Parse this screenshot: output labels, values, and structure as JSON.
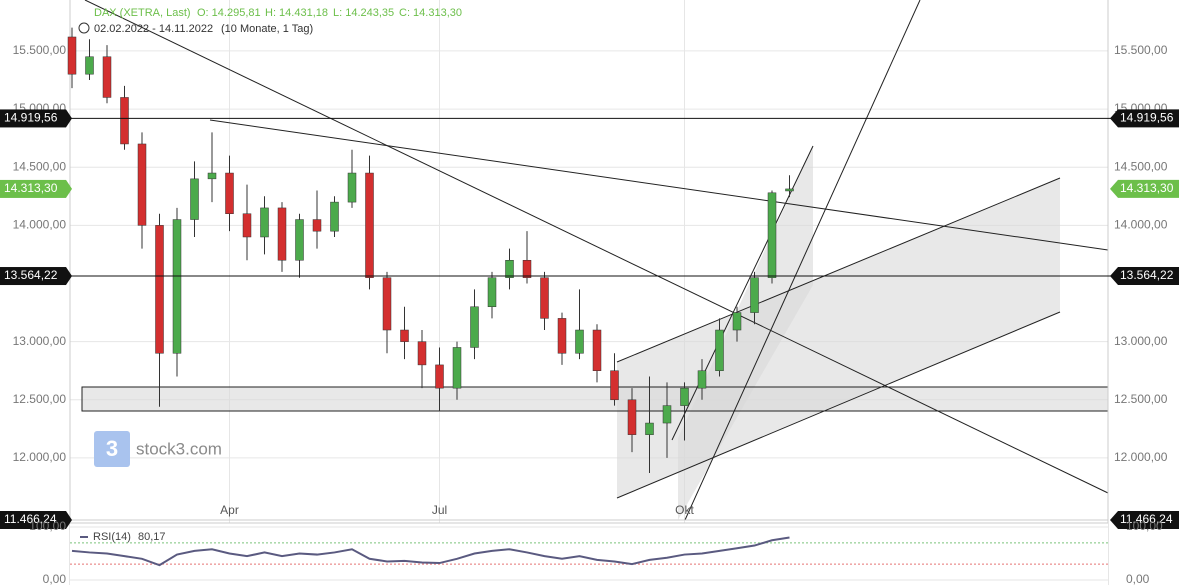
{
  "header": {
    "instrument": "DAX (XETRA, Last)",
    "ohlc": [
      "O: 14.295,81",
      "H: 14.431,18",
      "L: 14.243,35",
      "C: 14.313,30"
    ],
    "range": "02.02.2022 - 14.11.2022",
    "period": "(10 Monate, 1 Tag)"
  },
  "logo": "stock3.com",
  "chart_data": {
    "type": "candlestick",
    "categories": [
      null,
      null,
      null,
      null,
      null,
      null,
      null,
      null,
      null,
      "Apr",
      null,
      null,
      null,
      null,
      null,
      null,
      null,
      null,
      null,
      null,
      null,
      "Jul",
      null,
      null,
      null,
      null,
      null,
      null,
      null,
      null,
      null,
      null,
      null,
      null,
      null,
      "Okt",
      null,
      null,
      null,
      null,
      null,
      null
    ],
    "open": [
      15620,
      15300,
      15450,
      15100,
      14700,
      14000,
      12900,
      14050,
      14400,
      14450,
      14100,
      13900,
      14150,
      13700,
      14050,
      13950,
      14200,
      14450,
      13550,
      13100,
      13000,
      12800,
      12600,
      12950,
      13300,
      13550,
      13700,
      13550,
      13200,
      12900,
      13100,
      12750,
      12500,
      12200,
      12300,
      12450,
      12600,
      12750,
      13100,
      13250,
      13550,
      14295.81
    ],
    "high": [
      15700,
      15600,
      15550,
      15200,
      14800,
      14100,
      14150,
      14550,
      14800,
      14600,
      14350,
      14250,
      14200,
      14100,
      14300,
      14250,
      14650,
      14600,
      13600,
      13300,
      13100,
      12950,
      13000,
      13450,
      13600,
      13800,
      13950,
      13600,
      13250,
      13450,
      13150,
      12900,
      12600,
      12700,
      12650,
      12650,
      12850,
      13200,
      13300,
      13600,
      14300,
      14431.18
    ],
    "low": [
      15180,
      15250,
      15050,
      14650,
      13800,
      12440,
      12700,
      13900,
      14200,
      13950,
      13700,
      13750,
      13600,
      13550,
      13800,
      13900,
      14150,
      13450,
      12900,
      12850,
      12600,
      12400,
      12500,
      12850,
      13200,
      13450,
      13500,
      13100,
      12800,
      12850,
      12650,
      12450,
      12050,
      11870,
      12000,
      12150,
      12500,
      12700,
      13000,
      13150,
      13500,
      14243.35
    ],
    "close": [
      15300,
      15450,
      15100,
      14700,
      14000,
      12900,
      14050,
      14400,
      14450,
      14100,
      13900,
      14150,
      13700,
      14050,
      13950,
      14200,
      14450,
      13550,
      13100,
      13000,
      12800,
      12600,
      12950,
      13300,
      13550,
      13700,
      13550,
      13200,
      12900,
      13100,
      12750,
      12500,
      12200,
      12300,
      12450,
      12600,
      12750,
      13100,
      13250,
      13550,
      14280,
      14313.3
    ],
    "up_color": "#4caa4c",
    "down_color": "#d32f2f",
    "ylim": [
      11466.24,
      15938
    ],
    "yticks": [
      {
        "value": 15500,
        "label": "15.500,00"
      },
      {
        "value": 15000,
        "label": "15.000,00"
      },
      {
        "value": 14500,
        "label": "14.500,00"
      },
      {
        "value": 14000,
        "label": "14.000,00"
      },
      {
        "value": 13000,
        "label": "13.000,00"
      },
      {
        "value": 12500,
        "label": "12.500,00"
      },
      {
        "value": 12000,
        "label": "12.000,00"
      },
      {
        "value": 11466.24,
        "label": "11.466,24"
      }
    ],
    "levels": [
      {
        "value": 14919.56,
        "label": "14.919,56"
      },
      {
        "value": 13564.22,
        "label": "13.564,22"
      }
    ],
    "current": {
      "value": 14313.3,
      "label": "14.313,30",
      "color": "#6cbf4a"
    },
    "grid": true,
    "rsi": {
      "name": "RSI(14)",
      "value_label": "80,17",
      "color": "#5a5a80",
      "values": [
        55,
        52,
        50,
        45,
        40,
        28,
        48,
        55,
        58,
        50,
        45,
        52,
        45,
        50,
        48,
        52,
        58,
        40,
        35,
        36,
        33,
        32,
        40,
        50,
        55,
        58,
        52,
        45,
        40,
        45,
        38,
        35,
        30,
        38,
        42,
        48,
        50,
        55,
        60,
        65,
        75,
        80.17
      ],
      "ylim": [
        0,
        100
      ],
      "yticks": [
        {
          "value": 100,
          "label": "100,00"
        },
        {
          "value": 0,
          "label": "0,00"
        }
      ],
      "bands": [
        70,
        30
      ]
    }
  }
}
